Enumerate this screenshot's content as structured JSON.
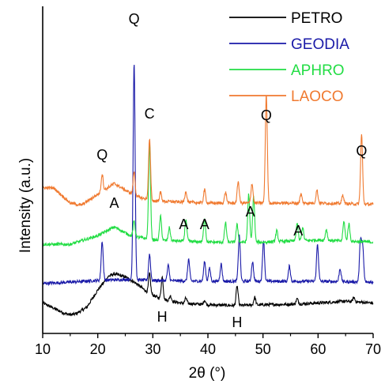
{
  "chart_data": {
    "type": "line",
    "title": "",
    "xlabel": "2θ (°)",
    "ylabel": "Intensity (a.u.)",
    "xlim": [
      10,
      70
    ],
    "x_ticks": [
      "10",
      "20",
      "30",
      "40",
      "50",
      "60",
      "70"
    ],
    "y_ticks": false,
    "grid": false,
    "legend_position": "top-right",
    "series": [
      {
        "name": "PETRO",
        "color": "#000000",
        "offset": 0,
        "baseline": [
          [
            10,
            0.3
          ],
          [
            12,
            0.18
          ],
          [
            14,
            0.06
          ],
          [
            15,
            0.03
          ],
          [
            16,
            0.05
          ],
          [
            18,
            0.2
          ],
          [
            20,
            0.6
          ],
          [
            22,
            0.92
          ],
          [
            23,
            0.97
          ],
          [
            25,
            0.9
          ],
          [
            27,
            0.75
          ],
          [
            29,
            0.55
          ],
          [
            31,
            0.42
          ],
          [
            33,
            0.35
          ],
          [
            35,
            0.3
          ],
          [
            40,
            0.26
          ],
          [
            45,
            0.24
          ],
          [
            50,
            0.26
          ],
          [
            55,
            0.27
          ],
          [
            60,
            0.3
          ],
          [
            65,
            0.34
          ],
          [
            70,
            0.3
          ]
        ],
        "peaks": [
          [
            29.4,
            0.45
          ],
          [
            31.7,
            0.5
          ],
          [
            33.2,
            0.12
          ],
          [
            36.0,
            0.12
          ],
          [
            39.4,
            0.1
          ],
          [
            45.3,
            0.45
          ],
          [
            48.5,
            0.18
          ],
          [
            56.2,
            0.12
          ],
          [
            66.5,
            0.1
          ]
        ]
      },
      {
        "name": "GEODIA",
        "color": "#1a1aa8",
        "offset": 0.6,
        "baseline": [
          [
            10,
            0.15
          ],
          [
            15,
            0.18
          ],
          [
            20,
            0.22
          ],
          [
            25,
            0.24
          ],
          [
            30,
            0.22
          ],
          [
            40,
            0.2
          ],
          [
            50,
            0.2
          ],
          [
            60,
            0.2
          ],
          [
            70,
            0.18
          ]
        ],
        "peaks": [
          [
            20.8,
            0.9
          ],
          [
            26.6,
            5.0
          ],
          [
            29.4,
            0.6
          ],
          [
            32.8,
            0.35
          ],
          [
            36.5,
            0.5
          ],
          [
            39.4,
            0.45
          ],
          [
            40.3,
            0.3
          ],
          [
            42.4,
            0.4
          ],
          [
            45.7,
            1.05
          ],
          [
            48.1,
            0.45
          ],
          [
            50.1,
            0.95
          ],
          [
            54.8,
            0.35
          ],
          [
            59.9,
            0.85
          ],
          [
            64.0,
            0.3
          ],
          [
            67.7,
            0.95
          ],
          [
            68.1,
            0.8
          ]
        ]
      },
      {
        "name": "APHRO",
        "color": "#22dd44",
        "offset": 1.35,
        "baseline": [
          [
            10,
            0.3
          ],
          [
            15,
            0.3
          ],
          [
            20,
            0.5
          ],
          [
            23,
            0.7
          ],
          [
            26,
            0.5
          ],
          [
            30,
            0.4
          ],
          [
            40,
            0.35
          ],
          [
            50,
            0.35
          ],
          [
            60,
            0.4
          ],
          [
            70,
            0.35
          ]
        ],
        "peaks": [
          [
            26.6,
            0.35
          ],
          [
            29.4,
            2.2
          ],
          [
            31.4,
            0.55
          ],
          [
            33.0,
            0.3
          ],
          [
            36.0,
            0.5
          ],
          [
            39.4,
            0.55
          ],
          [
            43.2,
            0.45
          ],
          [
            45.3,
            0.4
          ],
          [
            47.4,
            1.1
          ],
          [
            48.3,
            1.05
          ],
          [
            52.5,
            0.25
          ],
          [
            56.2,
            0.4
          ],
          [
            57.2,
            0.3
          ],
          [
            61.5,
            0.25
          ],
          [
            64.7,
            0.45
          ],
          [
            65.6,
            0.4
          ]
        ]
      },
      {
        "name": "LAOCO",
        "color": "#f07a30",
        "offset": 2.35,
        "baseline": [
          [
            10,
            0.6
          ],
          [
            12,
            0.6
          ],
          [
            15,
            0.25
          ],
          [
            17,
            0.2
          ],
          [
            20,
            0.45
          ],
          [
            23,
            0.7
          ],
          [
            25,
            0.55
          ],
          [
            27,
            0.4
          ],
          [
            30,
            0.3
          ],
          [
            40,
            0.25
          ],
          [
            50,
            0.25
          ],
          [
            60,
            0.25
          ],
          [
            70,
            0.22
          ]
        ],
        "peaks": [
          [
            20.8,
            0.4
          ],
          [
            26.6,
            0.55
          ],
          [
            29.4,
            1.4
          ],
          [
            31.4,
            0.2
          ],
          [
            36.0,
            0.25
          ],
          [
            39.4,
            0.3
          ],
          [
            43.2,
            0.25
          ],
          [
            45.5,
            0.5
          ],
          [
            48.0,
            0.45
          ],
          [
            50.6,
            2.5
          ],
          [
            56.9,
            0.2
          ],
          [
            59.8,
            0.3
          ],
          [
            64.5,
            0.2
          ],
          [
            67.9,
            1.6
          ]
        ]
      }
    ],
    "annotations": [
      {
        "text": "Q",
        "x": 26.6
      },
      {
        "text": "C",
        "x": 29.4
      },
      {
        "text": "Q",
        "x": 20.8
      },
      {
        "text": "Q",
        "x": 50.6
      },
      {
        "text": "Q",
        "x": 67.9
      },
      {
        "text": "A",
        "x": 23.0
      },
      {
        "text": "A",
        "x": 35.6
      },
      {
        "text": "A",
        "x": 39.4
      },
      {
        "text": "A",
        "x": 47.7
      },
      {
        "text": "A",
        "x": 56.4
      },
      {
        "text": "H",
        "x": 31.7
      },
      {
        "text": "H",
        "x": 45.3
      }
    ]
  }
}
